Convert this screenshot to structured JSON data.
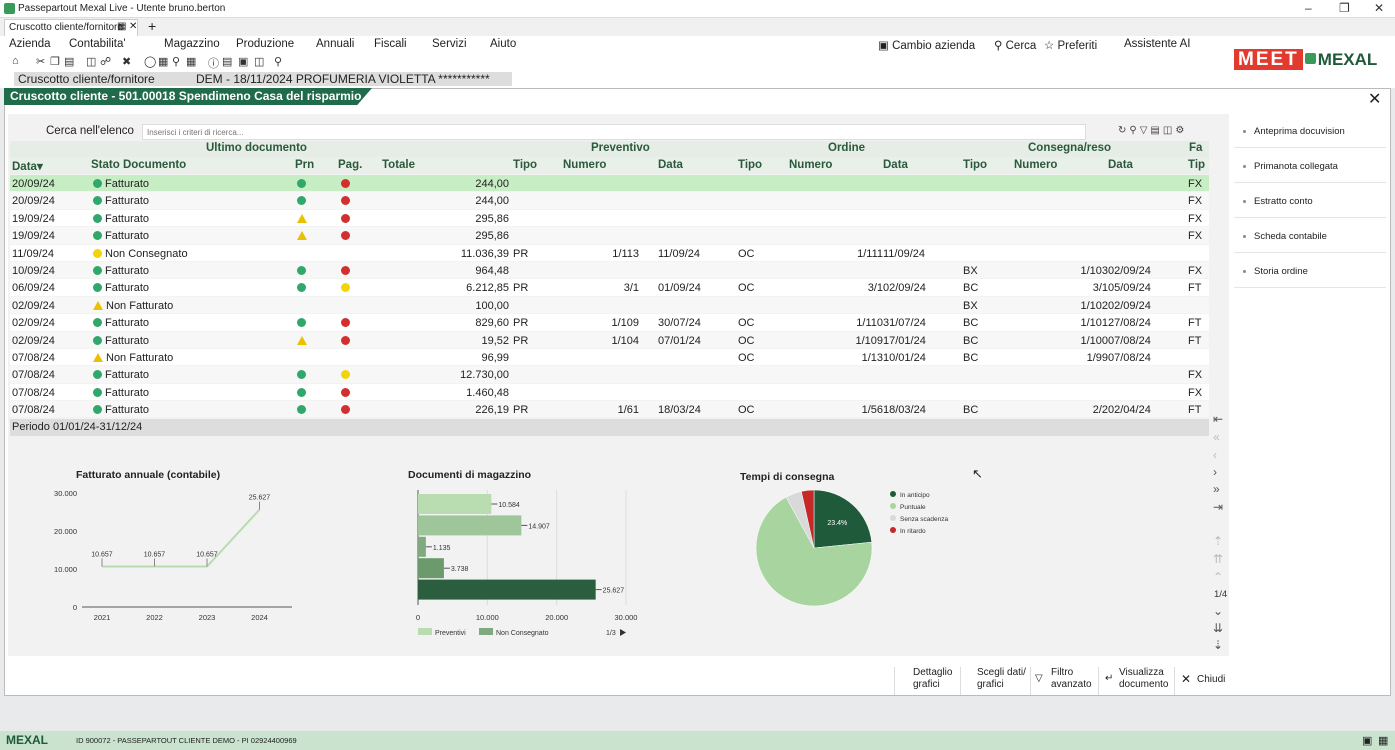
{
  "titlebar": {
    "title": "Passepartout Mexal Live - Utente bruno.berton"
  },
  "tabs": {
    "tab_label": "Cruscotto cliente/fornitore"
  },
  "menu": [
    "Azienda",
    "Contabilita'",
    "Magazzino",
    "Produzione",
    "Annuali",
    "Fiscali",
    "Servizi",
    "Aiuto"
  ],
  "menu_right": {
    "cambio": "Cambio azienda",
    "cerca": "Cerca",
    "preferiti": "Preferiti",
    "assistente": "Assistente AI"
  },
  "logo": {
    "meet": "MEET",
    "mexal": "MEXAL"
  },
  "context": {
    "label": "Cruscotto cliente/fornitore",
    "info": "DEM - 18/11/2024  PROFUMERIA VIOLETTA ***********"
  },
  "panel": {
    "title": "Cruscotto cliente - 501.00018 Spendimeno Casa del risparmio"
  },
  "search": {
    "label": "Cerca nell'elenco",
    "placeholder": "Inserisci i criteri di ricerca..."
  },
  "table": {
    "groups": {
      "ultimo": "Ultimo documento",
      "preventivo": "Preventivo",
      "ordine": "Ordine",
      "consegna": "Consegna/reso",
      "fa": "Fa"
    },
    "headers": {
      "data": "Data",
      "stato": "Stato Documento",
      "prn": "Prn",
      "pag": "Pag.",
      "totale": "Totale",
      "tipo": "Tipo",
      "numero": "Numero",
      "datacol": "Data",
      "tip": "Tip"
    },
    "rows": [
      {
        "data": "20/09/24",
        "stato": "Fatturato",
        "sc": "green",
        "prn": "green",
        "pag": "red",
        "tot": "244,00",
        "pt": "",
        "pn": "",
        "pd": "",
        "ot": "",
        "on": "",
        "od": "",
        "ct": "",
        "cn": "",
        "cd": "",
        "fa": "FX",
        "sel": true
      },
      {
        "data": "20/09/24",
        "stato": "Fatturato",
        "sc": "green",
        "prn": "green",
        "pag": "red",
        "tot": "244,00",
        "pt": "",
        "pn": "",
        "pd": "",
        "ot": "",
        "on": "",
        "od": "",
        "ct": "",
        "cn": "",
        "cd": "",
        "fa": "FX"
      },
      {
        "data": "19/09/24",
        "stato": "Fatturato",
        "sc": "green",
        "prn": "warn",
        "pag": "red",
        "tot": "295,86",
        "pt": "",
        "pn": "",
        "pd": "",
        "ot": "",
        "on": "",
        "od": "",
        "ct": "",
        "cn": "",
        "cd": "",
        "fa": "FX"
      },
      {
        "data": "19/09/24",
        "stato": "Fatturato",
        "sc": "green",
        "prn": "warn",
        "pag": "red",
        "tot": "295,86",
        "pt": "",
        "pn": "",
        "pd": "",
        "ot": "",
        "on": "",
        "od": "",
        "ct": "",
        "cn": "",
        "cd": "",
        "fa": "FX"
      },
      {
        "data": "11/09/24",
        "stato": "Non Consegnato",
        "sc": "yellow",
        "prn": "",
        "pag": "",
        "tot": "11.036,39",
        "pt": "PR",
        "pn": "1/113",
        "pd": "11/09/24",
        "ot": "OC",
        "on": "1/111",
        "od": "11/09/24",
        "ct": "",
        "cn": "",
        "cd": "",
        "fa": ""
      },
      {
        "data": "10/09/24",
        "stato": "Fatturato",
        "sc": "green",
        "prn": "green",
        "pag": "red",
        "tot": "964,48",
        "pt": "",
        "pn": "",
        "pd": "",
        "ot": "",
        "on": "",
        "od": "",
        "ct": "BX",
        "cn": "1/103",
        "cd": "02/09/24",
        "fa": "FX"
      },
      {
        "data": "06/09/24",
        "stato": "Fatturato",
        "sc": "green",
        "prn": "green",
        "pag": "yellow",
        "tot": "6.212,85",
        "pt": "PR",
        "pn": "3/1",
        "pd": "01/09/24",
        "ot": "OC",
        "on": "3/1",
        "od": "02/09/24",
        "ct": "BC",
        "cn": "3/1",
        "cd": "05/09/24",
        "fa": "FT"
      },
      {
        "data": "02/09/24",
        "stato": "Non Fatturato",
        "sc": "warn",
        "prn": "",
        "pag": "",
        "tot": "100,00",
        "pt": "",
        "pn": "",
        "pd": "",
        "ot": "",
        "on": "",
        "od": "",
        "ct": "BX",
        "cn": "1/102",
        "cd": "02/09/24",
        "fa": ""
      },
      {
        "data": "02/09/24",
        "stato": "Fatturato",
        "sc": "green",
        "prn": "green",
        "pag": "red",
        "tot": "829,60",
        "pt": "PR",
        "pn": "1/109",
        "pd": "30/07/24",
        "ot": "OC",
        "on": "1/110",
        "od": "31/07/24",
        "ct": "BC",
        "cn": "1/101",
        "cd": "27/08/24",
        "fa": "FT"
      },
      {
        "data": "02/09/24",
        "stato": "Fatturato",
        "sc": "green",
        "prn": "warn",
        "pag": "red",
        "tot": "19,52",
        "pt": "PR",
        "pn": "1/104",
        "pd": "07/01/24",
        "ot": "OC",
        "on": "1/109",
        "od": "17/01/24",
        "ct": "BC",
        "cn": "1/100",
        "cd": "07/08/24",
        "fa": "FT"
      },
      {
        "data": "07/08/24",
        "stato": "Non Fatturato",
        "sc": "warn",
        "prn": "",
        "pag": "",
        "tot": "96,99",
        "pt": "",
        "pn": "",
        "pd": "",
        "ot": "OC",
        "on": "1/13",
        "od": "10/01/24",
        "ct": "BC",
        "cn": "1/99",
        "cd": "07/08/24",
        "fa": ""
      },
      {
        "data": "07/08/24",
        "stato": "Fatturato",
        "sc": "green",
        "prn": "green",
        "pag": "yellow",
        "tot": "12.730,00",
        "pt": "",
        "pn": "",
        "pd": "",
        "ot": "",
        "on": "",
        "od": "",
        "ct": "",
        "cn": "",
        "cd": "",
        "fa": "FX"
      },
      {
        "data": "07/08/24",
        "stato": "Fatturato",
        "sc": "green",
        "prn": "green",
        "pag": "red",
        "tot": "1.460,48",
        "pt": "",
        "pn": "",
        "pd": "",
        "ot": "",
        "on": "",
        "od": "",
        "ct": "",
        "cn": "",
        "cd": "",
        "fa": "FX"
      },
      {
        "data": "07/08/24",
        "stato": "Fatturato",
        "sc": "green",
        "prn": "green",
        "pag": "red",
        "tot": "226,19",
        "pt": "PR",
        "pn": "1/61",
        "pd": "18/03/24",
        "ot": "OC",
        "on": "1/56",
        "od": "18/03/24",
        "ct": "BC",
        "cn": "2/2",
        "cd": "02/04/24",
        "fa": "FT"
      }
    ],
    "period": "Periodo 01/01/24-31/12/24"
  },
  "nav": {
    "page": "1/4"
  },
  "side_panel": [
    "Anteprima docuvision",
    "Primanota collegata",
    "Estratto conto",
    "Scheda contabile",
    "Storia ordine"
  ],
  "buttons": {
    "dettaglio": "Dettaglio grafici",
    "scegli": "Scegli dati/ grafici",
    "filtro": "Filtro avanzato",
    "visualizza": "Visualizza documento",
    "chiudi": "Chiudi"
  },
  "statusbar": {
    "logo": "MEXAL",
    "info": "ID 900072 - PASSEPARTOUT CLIENTE DEMO - PI 02924400969"
  },
  "colors": {
    "accent": "#1f6b4a",
    "green_light": "#a8d4a0",
    "green_mid": "#7fa97e",
    "green_dark": "#1f5a3a",
    "red": "#d32f2f",
    "yellow": "#f2d40a"
  },
  "chart_data": [
    {
      "type": "line",
      "title": "Fatturato annuale (contabile)",
      "categories": [
        "2021",
        "2022",
        "2023",
        "2024"
      ],
      "values": [
        10657,
        10657,
        10657,
        25627
      ],
      "labels": [
        "10.657",
        "10.657",
        "10.657",
        "25.627"
      ],
      "yticks": [
        "30.000",
        "20.000",
        "10.000",
        "0"
      ],
      "ylim": [
        0,
        30000
      ]
    },
    {
      "type": "bar",
      "title": "Documenti di magazzino",
      "orientation": "horizontal",
      "values": [
        10584,
        14907,
        1135,
        3738,
        25627
      ],
      "labels": [
        "10.584",
        "14.907",
        "1.135",
        "3.738",
        "25.627"
      ],
      "xticks": [
        "0",
        "10.000",
        "20.000",
        "30.000"
      ],
      "xlim": [
        0,
        30000
      ],
      "legend": [
        "Preventivi",
        "Non Consegnato"
      ],
      "pager": "1/3"
    },
    {
      "type": "pie",
      "title": "Tempi di consegna",
      "slices": [
        {
          "name": "In anticipo",
          "value": 23.4,
          "label": "23.4%"
        },
        {
          "name": "Puntuale",
          "value": 68.6
        },
        {
          "name": "Senza scadenza",
          "value": 4.5
        },
        {
          "name": "In ritardo",
          "value": 3.5
        }
      ],
      "legend_placement": "right"
    }
  ]
}
